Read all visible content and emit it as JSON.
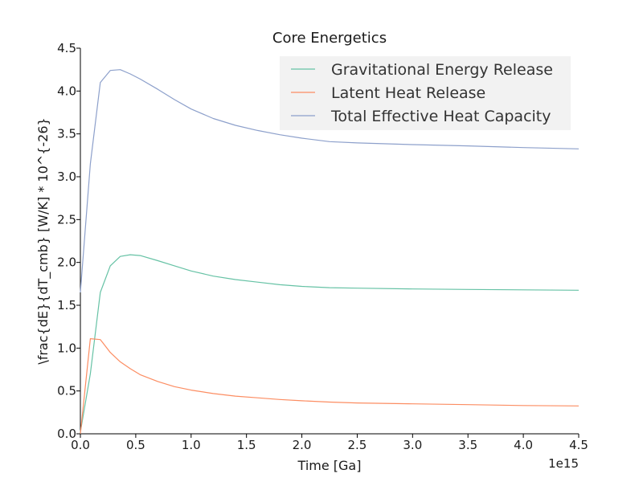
{
  "chart_data": {
    "type": "line",
    "title": "Core Energetics",
    "xlabel": "Time [Ga]",
    "ylabel": "\\frac{dE}{dT_cmb} [W/K] * 10^{-26}",
    "x_offset_label": "1e15",
    "xlim": [
      0,
      4.5
    ],
    "ylim": [
      0,
      4.5
    ],
    "x_ticks": [
      "0.0",
      "0.5",
      "1.0",
      "1.5",
      "2.0",
      "2.5",
      "3.0",
      "3.5",
      "4.0",
      "4.5"
    ],
    "y_ticks": [
      "0.0",
      "0.5",
      "1.0",
      "1.5",
      "2.0",
      "2.5",
      "3.0",
      "3.5",
      "4.0",
      "4.5"
    ],
    "grid": false,
    "legend_position": "top-right",
    "x": [
      0,
      0.09,
      0.18,
      0.27,
      0.36,
      0.45,
      0.54,
      0.7,
      0.85,
      1.0,
      1.2,
      1.4,
      1.6,
      1.8,
      2.0,
      2.25,
      2.5,
      3.0,
      3.5,
      4.0,
      4.5
    ],
    "series": [
      {
        "name": "Gravitational Energy Release",
        "color": "#66c2a5",
        "values": [
          0.02,
          0.7,
          1.65,
          1.96,
          2.07,
          2.09,
          2.08,
          2.02,
          1.96,
          1.9,
          1.84,
          1.8,
          1.77,
          1.74,
          1.72,
          1.705,
          1.7,
          1.69,
          1.685,
          1.68,
          1.675
        ]
      },
      {
        "name": "Latent Heat Release",
        "color": "#fc8d62",
        "values": [
          0.0,
          1.11,
          1.1,
          0.95,
          0.84,
          0.76,
          0.69,
          0.61,
          0.55,
          0.51,
          0.47,
          0.44,
          0.42,
          0.4,
          0.385,
          0.37,
          0.36,
          0.35,
          0.34,
          0.33,
          0.325
        ]
      },
      {
        "name": "Total Effective Heat Capacity",
        "color": "#8da0cb",
        "values": [
          1.65,
          3.15,
          4.1,
          4.24,
          4.25,
          4.2,
          4.14,
          4.02,
          3.9,
          3.79,
          3.68,
          3.6,
          3.54,
          3.49,
          3.45,
          3.41,
          3.395,
          3.375,
          3.36,
          3.34,
          3.325
        ]
      }
    ]
  }
}
